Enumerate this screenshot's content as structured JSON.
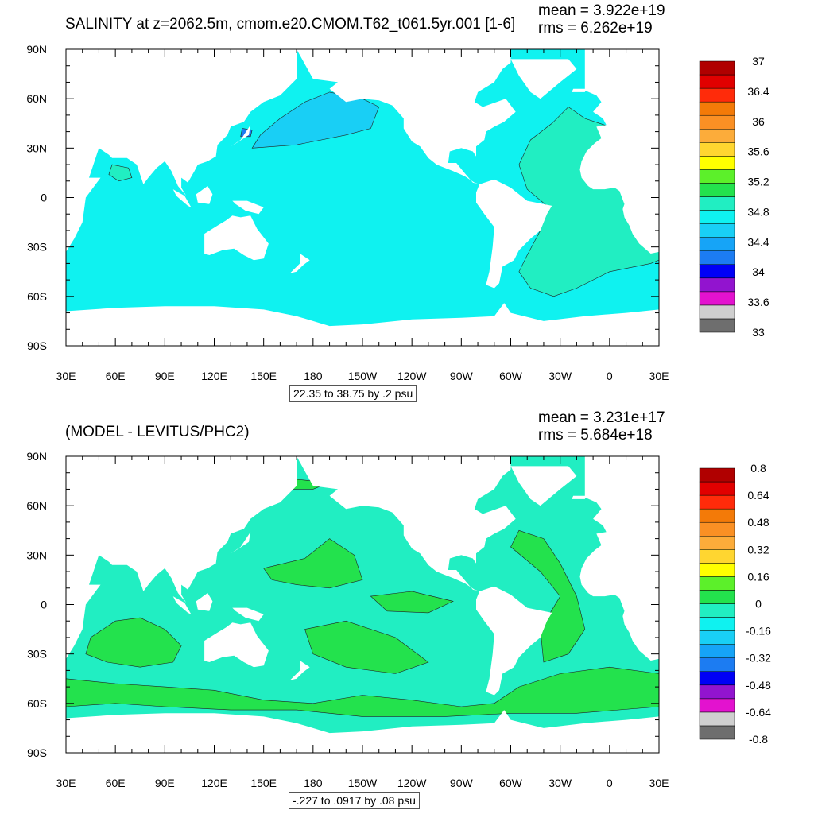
{
  "chart_data": [
    {
      "type": "heatmap",
      "title": "SALINITY at z=2062.5m, cmom.e20.CMOM.T62_t061.5yr.001 [1-6]",
      "stats": {
        "mean": "mean = 3.922e+19",
        "rms": "rms = 6.262e+19"
      },
      "contour_info": "22.35 to 38.75 by .2 psu",
      "xlim": [
        30,
        390
      ],
      "ylim": [
        -90,
        90
      ],
      "x_ticks": [
        "30E",
        "60E",
        "90E",
        "120E",
        "150E",
        "180",
        "150W",
        "120W",
        "90W",
        "60W",
        "30W",
        "0",
        "30E"
      ],
      "y_ticks": [
        "90N",
        "60N",
        "30N",
        "0",
        "30S",
        "60S",
        "90S"
      ],
      "colorbar": {
        "colors": [
          "#6e6e6e",
          "#cfcfcf",
          "#e312cf",
          "#9214cf",
          "#0000f6",
          "#1c7cf2",
          "#16a4f7",
          "#19cff5",
          "#0ff2f0",
          "#21eec2",
          "#23e24d",
          "#5cf02a",
          "#ffff00",
          "#ffd630",
          "#fcac3a",
          "#fa9024",
          "#f37a08",
          "#ff2b0a",
          "#e10000",
          "#b00000"
        ],
        "labels": [
          "33",
          "33.6",
          "34",
          "34.4",
          "34.8",
          "35.2",
          "35.6",
          "36",
          "36.4",
          "37"
        ]
      },
      "background_value_color": "#0ff2f0"
    },
    {
      "type": "heatmap",
      "title": "(MODEL - LEVITUS/PHC2)",
      "stats": {
        "mean": "mean = 3.231e+17",
        "rms": "rms = 5.684e+18"
      },
      "contour_info": "-.227 to .0917 by .08 psu",
      "xlim": [
        30,
        390
      ],
      "ylim": [
        -90,
        90
      ],
      "x_ticks": [
        "30E",
        "60E",
        "90E",
        "120E",
        "150E",
        "180",
        "150W",
        "120W",
        "90W",
        "60W",
        "30W",
        "0",
        "30E"
      ],
      "y_ticks": [
        "90N",
        "60N",
        "30N",
        "0",
        "30S",
        "60S",
        "90S"
      ],
      "colorbar": {
        "colors": [
          "#6e6e6e",
          "#cfcfcf",
          "#e312cf",
          "#9214cf",
          "#0000f6",
          "#1c7cf2",
          "#16a4f7",
          "#19cff5",
          "#0ff2f0",
          "#21eec2",
          "#23e24d",
          "#5cf02a",
          "#ffff00",
          "#ffd630",
          "#fcac3a",
          "#fa9024",
          "#f37a08",
          "#ff2b0a",
          "#e10000",
          "#b00000"
        ],
        "labels": [
          "-0.8",
          "-0.64",
          "-0.48",
          "-0.32",
          "-0.16",
          "0",
          "0.16",
          "0.32",
          "0.48",
          "0.64",
          "0.8"
        ]
      },
      "background_value_color": "#21eec2"
    }
  ]
}
